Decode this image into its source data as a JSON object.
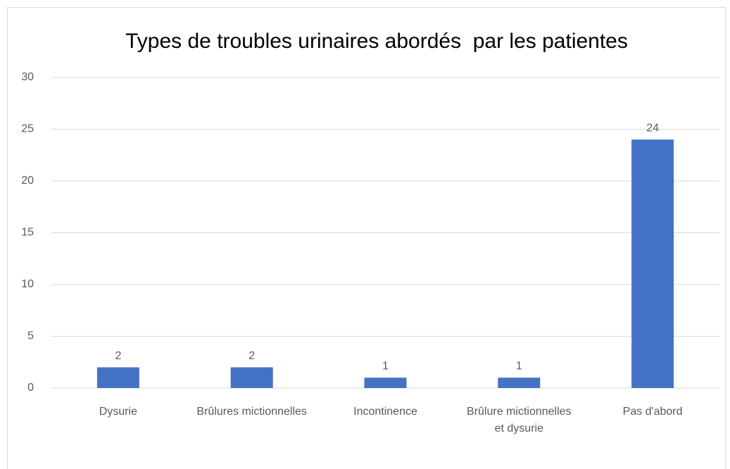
{
  "chart_data": {
    "type": "bar",
    "title": "Types de troubles urinaires abordés  par les patientes",
    "categories": [
      "Dysurie",
      "Brûlures mictionnelles",
      "Incontinence",
      "Brûlure mictionnelles et dysurie",
      "Pas d'abord"
    ],
    "values": [
      2,
      2,
      1,
      1,
      24
    ],
    "color": "#4472c4",
    "ylim": [
      0,
      30
    ],
    "yticks": [
      0,
      5,
      10,
      15,
      20,
      25,
      30
    ],
    "grid": true
  }
}
